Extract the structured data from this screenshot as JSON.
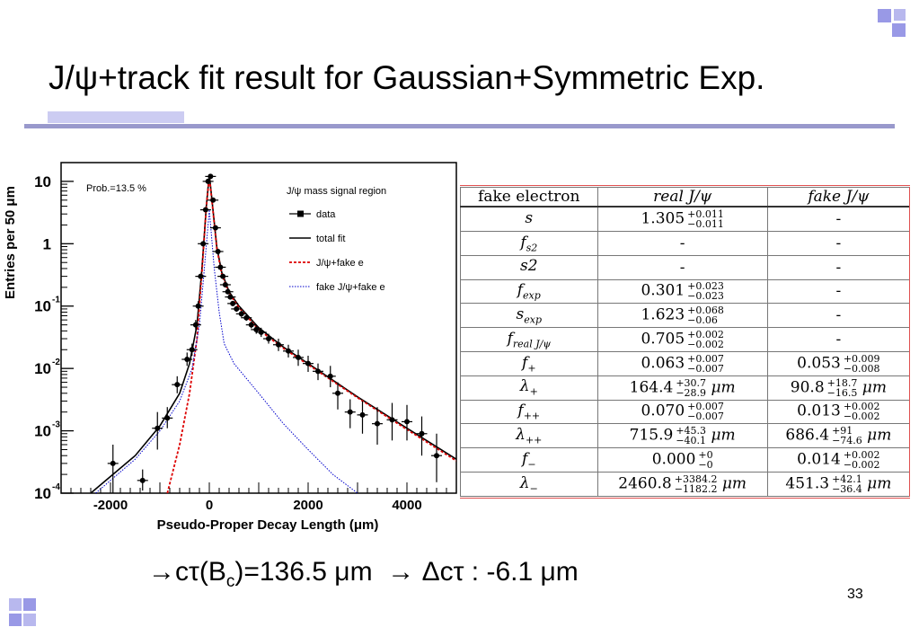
{
  "slide": {
    "title": "J/ψ+track fit result for Gaussian+Symmetric Exp.",
    "page_number": "33",
    "result": {
      "arrow1": "→",
      "lhs": "cτ(B",
      "sub": "c",
      "rhs": ")=136.5 μm",
      "arrow2": "→",
      "delta": "Δcτ : -6.1 μm"
    },
    "accent_color": "#9999e6"
  },
  "chart_data": {
    "type": "scatter",
    "xlabel": "Pseudo-Proper Decay Length (μm)",
    "ylabel": "Entries per 50 μm",
    "xlim": [
      -3000,
      5000
    ],
    "ylim": [
      0.0001,
      20
    ],
    "yscale": "log",
    "x_ticks": [
      "-2000",
      "0",
      "2000",
      "4000"
    ],
    "x_tick_values": [
      -2000,
      0,
      2000,
      4000
    ],
    "y_ticks": [
      {
        "value": 10,
        "base": "10",
        "exp": ""
      },
      {
        "value": 1,
        "base": "1",
        "exp": ""
      },
      {
        "value": 0.1,
        "base": "10",
        "exp": "-1"
      },
      {
        "value": 0.01,
        "base": "10",
        "exp": "-2"
      },
      {
        "value": 0.001,
        "base": "10",
        "exp": "-3"
      },
      {
        "value": 0.0001,
        "base": "10",
        "exp": "-4"
      }
    ],
    "annotation": "Prob.=13.5 %",
    "legend_title": "J/ψ mass signal region",
    "legend": [
      {
        "label": "data",
        "style": "marker",
        "color": "#000000"
      },
      {
        "label": "total fit",
        "style": "solid",
        "color": "#000000"
      },
      {
        "label": "J/ψ+fake e",
        "style": "dashed",
        "color": "#dd0000"
      },
      {
        "label": "fake J/ψ+fake e",
        "style": "dotted",
        "color": "#0000cc"
      }
    ],
    "legend_position": "top-right",
    "series": [
      {
        "name": "data",
        "color": "#000000",
        "points": [
          {
            "x": -1950,
            "y": 0.0003,
            "elo": 0.0001,
            "ehi": 0.0006
          },
          {
            "x": -1350,
            "y": 0.00016,
            "elo": 0.00011,
            "ehi": 0.00024
          },
          {
            "x": -1050,
            "y": 0.0011,
            "elo": 0.0005,
            "ehi": 0.002
          },
          {
            "x": -850,
            "y": 0.0016,
            "elo": 0.0011,
            "ehi": 0.0024
          },
          {
            "x": -650,
            "y": 0.0055,
            "elo": 0.004,
            "ehi": 0.0075
          },
          {
            "x": -450,
            "y": 0.014,
            "elo": 0.011,
            "ehi": 0.018
          },
          {
            "x": -350,
            "y": 0.02,
            "elo": 0.016,
            "ehi": 0.025
          },
          {
            "x": -275,
            "y": 0.05,
            "elo": 0.042,
            "ehi": 0.06
          },
          {
            "x": -225,
            "y": 0.1,
            "elo": 0.09,
            "ehi": 0.12
          },
          {
            "x": -175,
            "y": 0.3,
            "elo": 0.27,
            "ehi": 0.33
          },
          {
            "x": -125,
            "y": 1.0,
            "elo": 0.95,
            "ehi": 1.05
          },
          {
            "x": -75,
            "y": 3.5,
            "elo": 3.3,
            "ehi": 3.7
          },
          {
            "x": -25,
            "y": 10,
            "elo": 9.7,
            "ehi": 10.3
          },
          {
            "x": 25,
            "y": 12,
            "elo": 11.7,
            "ehi": 12.3
          },
          {
            "x": 75,
            "y": 5.0,
            "elo": 4.8,
            "ehi": 5.2
          },
          {
            "x": 125,
            "y": 1.8,
            "elo": 1.7,
            "ehi": 1.9
          },
          {
            "x": 175,
            "y": 0.75,
            "elo": 0.7,
            "ehi": 0.8
          },
          {
            "x": 225,
            "y": 0.42,
            "elo": 0.39,
            "ehi": 0.45
          },
          {
            "x": 275,
            "y": 0.3,
            "elo": 0.28,
            "ehi": 0.32
          },
          {
            "x": 325,
            "y": 0.22,
            "elo": 0.2,
            "ehi": 0.24
          },
          {
            "x": 375,
            "y": 0.17,
            "elo": 0.155,
            "ehi": 0.185
          },
          {
            "x": 425,
            "y": 0.14,
            "elo": 0.127,
            "ehi": 0.153
          },
          {
            "x": 475,
            "y": 0.11,
            "elo": 0.1,
            "ehi": 0.12
          },
          {
            "x": 550,
            "y": 0.09,
            "elo": 0.081,
            "ehi": 0.1
          },
          {
            "x": 650,
            "y": 0.075,
            "elo": 0.067,
            "ehi": 0.084
          },
          {
            "x": 750,
            "y": 0.065,
            "elo": 0.058,
            "ehi": 0.073
          },
          {
            "x": 850,
            "y": 0.05,
            "elo": 0.044,
            "ehi": 0.057
          },
          {
            "x": 950,
            "y": 0.042,
            "elo": 0.036,
            "ehi": 0.049
          },
          {
            "x": 1050,
            "y": 0.038,
            "elo": 0.032,
            "ehi": 0.045
          },
          {
            "x": 1200,
            "y": 0.03,
            "elo": 0.025,
            "ehi": 0.036
          },
          {
            "x": 1400,
            "y": 0.024,
            "elo": 0.019,
            "ehi": 0.03
          },
          {
            "x": 1600,
            "y": 0.019,
            "elo": 0.015,
            "ehi": 0.024
          },
          {
            "x": 1800,
            "y": 0.015,
            "elo": 0.011,
            "ehi": 0.02
          },
          {
            "x": 2000,
            "y": 0.012,
            "elo": 0.0088,
            "ehi": 0.016
          },
          {
            "x": 2200,
            "y": 0.009,
            "elo": 0.0065,
            "ehi": 0.012
          },
          {
            "x": 2450,
            "y": 0.0075,
            "elo": 0.005,
            "ehi": 0.011
          },
          {
            "x": 2600,
            "y": 0.004,
            "elo": 0.0022,
            "ehi": 0.006
          },
          {
            "x": 2850,
            "y": 0.002,
            "elo": 0.0011,
            "ehi": 0.0032
          },
          {
            "x": 3100,
            "y": 0.0018,
            "elo": 0.0009,
            "ehi": 0.003
          },
          {
            "x": 3400,
            "y": 0.0013,
            "elo": 0.0006,
            "ehi": 0.0024
          },
          {
            "x": 3700,
            "y": 0.0015,
            "elo": 0.0007,
            "ehi": 0.0028
          },
          {
            "x": 4000,
            "y": 0.0014,
            "elo": 0.0007,
            "ehi": 0.0026
          },
          {
            "x": 4300,
            "y": 0.0009,
            "elo": 0.0004,
            "ehi": 0.0017
          },
          {
            "x": 4600,
            "y": 0.0004,
            "elo": 0.00015,
            "ehi": 0.0009
          }
        ]
      },
      {
        "name": "total fit",
        "color": "#000000",
        "points": [
          [
            -2400,
            0.0001
          ],
          [
            -1500,
            0.0004
          ],
          [
            -1000,
            0.0012
          ],
          [
            -600,
            0.004
          ],
          [
            -400,
            0.012
          ],
          [
            -250,
            0.05
          ],
          [
            -150,
            0.4
          ],
          [
            -60,
            4
          ],
          [
            0,
            13
          ],
          [
            60,
            4.5
          ],
          [
            150,
            0.9
          ],
          [
            250,
            0.35
          ],
          [
            400,
            0.17
          ],
          [
            600,
            0.1
          ],
          [
            1000,
            0.045
          ],
          [
            1500,
            0.022
          ],
          [
            2000,
            0.012
          ],
          [
            3000,
            0.0035
          ],
          [
            4000,
            0.0011
          ],
          [
            5000,
            0.00035
          ]
        ]
      },
      {
        "name": "J/ψ+fake e",
        "color": "#dd0000",
        "points": [
          [
            -850,
            0.0001
          ],
          [
            -600,
            0.0006
          ],
          [
            -400,
            0.004
          ],
          [
            -250,
            0.03
          ],
          [
            -150,
            0.35
          ],
          [
            -60,
            4
          ],
          [
            0,
            12
          ],
          [
            60,
            4.3
          ],
          [
            150,
            0.85
          ],
          [
            250,
            0.33
          ],
          [
            400,
            0.16
          ],
          [
            600,
            0.095
          ],
          [
            1000,
            0.042
          ],
          [
            1500,
            0.021
          ],
          [
            2000,
            0.0115
          ],
          [
            3000,
            0.0034
          ],
          [
            4000,
            0.00105
          ],
          [
            5000,
            0.00033
          ]
        ]
      },
      {
        "name": "fake J/ψ+fake e",
        "color": "#0000cc",
        "points": [
          [
            -2300,
            0.0001
          ],
          [
            -1500,
            0.00035
          ],
          [
            -1000,
            0.001
          ],
          [
            -600,
            0.003
          ],
          [
            -350,
            0.01
          ],
          [
            -200,
            0.05
          ],
          [
            -100,
            0.4
          ],
          [
            0,
            3.5
          ],
          [
            100,
            0.4
          ],
          [
            200,
            0.08
          ],
          [
            300,
            0.025
          ],
          [
            500,
            0.012
          ],
          [
            1000,
            0.004
          ],
          [
            1500,
            0.0013
          ],
          [
            2000,
            0.0005
          ],
          [
            2500,
            0.0002
          ],
          [
            3000,
            0.0001
          ]
        ]
      }
    ]
  },
  "fit_table": {
    "headers": [
      "fake electron",
      "real J/ψ",
      "fake J/ψ"
    ],
    "rows": [
      {
        "param": "s",
        "sub": "",
        "real": "1.305",
        "real_up": "+0.011",
        "real_dn": "−0.011",
        "real_unit": "",
        "fake": "-",
        "fake_up": "",
        "fake_dn": "",
        "fake_unit": ""
      },
      {
        "param": "f",
        "sub": "s2",
        "real": "-",
        "real_up": "",
        "real_dn": "",
        "real_unit": "",
        "fake": "-",
        "fake_up": "",
        "fake_dn": "",
        "fake_unit": ""
      },
      {
        "param": "s2",
        "sub": "",
        "real": "-",
        "real_up": "",
        "real_dn": "",
        "real_unit": "",
        "fake": "-",
        "fake_up": "",
        "fake_dn": "",
        "fake_unit": ""
      },
      {
        "param": "f",
        "sub": "exp",
        "real": "0.301",
        "real_up": "+0.023",
        "real_dn": "−0.023",
        "real_unit": "",
        "fake": "-",
        "fake_up": "",
        "fake_dn": "",
        "fake_unit": ""
      },
      {
        "param": "s",
        "sub": "exp",
        "real": "1.623",
        "real_up": "+0.068",
        "real_dn": "−0.06",
        "real_unit": "",
        "fake": "-",
        "fake_up": "",
        "fake_dn": "",
        "fake_unit": ""
      },
      {
        "param": "f",
        "sub": "real J/ψ",
        "real": "0.705",
        "real_up": "+0.002",
        "real_dn": "−0.002",
        "real_unit": "",
        "fake": "-",
        "fake_up": "",
        "fake_dn": "",
        "fake_unit": ""
      },
      {
        "param": "f",
        "sub": "+",
        "real": "0.063",
        "real_up": "+0.007",
        "real_dn": "−0.007",
        "real_unit": "",
        "fake": "0.053",
        "fake_up": "+0.009",
        "fake_dn": "−0.008",
        "fake_unit": ""
      },
      {
        "param": "λ",
        "sub": "+",
        "real": "164.4",
        "real_up": "+30.7",
        "real_dn": "−28.9",
        "real_unit": "μm",
        "fake": "90.8",
        "fake_up": "+18.7",
        "fake_dn": "−16.5",
        "fake_unit": "μm"
      },
      {
        "param": "f",
        "sub": "++",
        "real": "0.070",
        "real_up": "+0.007",
        "real_dn": "−0.007",
        "real_unit": "",
        "fake": "0.013",
        "fake_up": "+0.002",
        "fake_dn": "−0.002",
        "fake_unit": ""
      },
      {
        "param": "λ",
        "sub": "++",
        "real": "715.9",
        "real_up": "+45.3",
        "real_dn": "−40.1",
        "real_unit": "μm",
        "fake": "686.4",
        "fake_up": "+91",
        "fake_dn": "−74.6",
        "fake_unit": "μm"
      },
      {
        "param": "f",
        "sub": "−",
        "real": "0.000",
        "real_up": "+0",
        "real_dn": "−0",
        "real_unit": "",
        "fake": "0.014",
        "fake_up": "+0.002",
        "fake_dn": "−0.002",
        "fake_unit": ""
      },
      {
        "param": "λ",
        "sub": "−",
        "real": "2460.8",
        "real_up": "+3384.2",
        "real_dn": "−1182.2",
        "real_unit": "μm",
        "fake": "451.3",
        "fake_up": "+42.1",
        "fake_dn": "−36.4",
        "fake_unit": "μm"
      }
    ]
  }
}
